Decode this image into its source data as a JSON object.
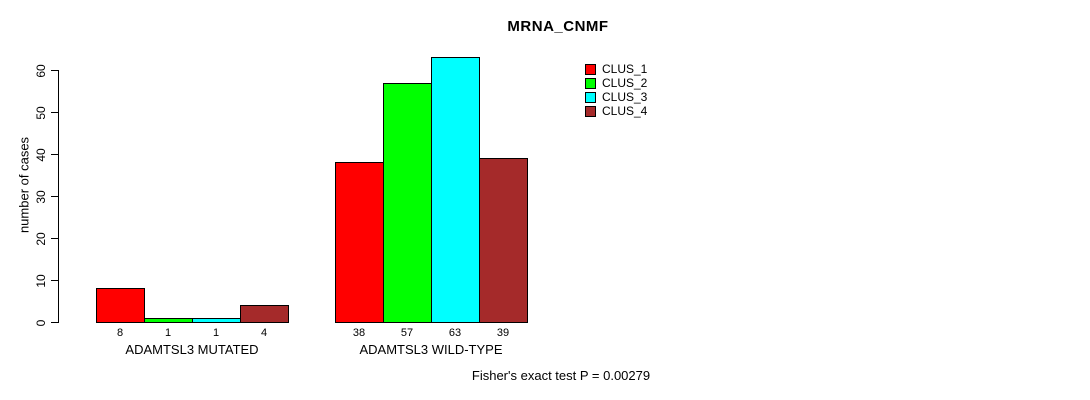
{
  "chart": {
    "title": "MRNA_CNMF",
    "ylabel": "number of cases",
    "annotation": "Fisher's exact test P = 0.00279"
  },
  "chart_data": {
    "type": "bar",
    "title": "MRNA_CNMF",
    "xlabel": "",
    "ylabel": "number of cases",
    "ylim": [
      0,
      60
    ],
    "yticks": [
      0,
      10,
      20,
      30,
      40,
      50,
      60
    ],
    "grid": false,
    "legend_position": "right",
    "categories": [
      "ADAMTSL3 MUTATED",
      "ADAMTSL3 WILD-TYPE"
    ],
    "series": [
      {
        "name": "CLUS_1",
        "color": "#ff0000",
        "values": [
          8,
          38
        ]
      },
      {
        "name": "CLUS_2",
        "color": "#00ff00",
        "values": [
          1,
          57
        ]
      },
      {
        "name": "CLUS_3",
        "color": "#00ffff",
        "values": [
          1,
          63
        ]
      },
      {
        "name": "CLUS_4",
        "color": "#a52a2a",
        "values": [
          4,
          39
        ]
      }
    ],
    "bar_value_labels": [
      [
        8,
        1,
        1,
        4
      ],
      [
        38,
        57,
        63,
        39
      ]
    ],
    "annotation": "Fisher's exact test P = 0.00279"
  }
}
